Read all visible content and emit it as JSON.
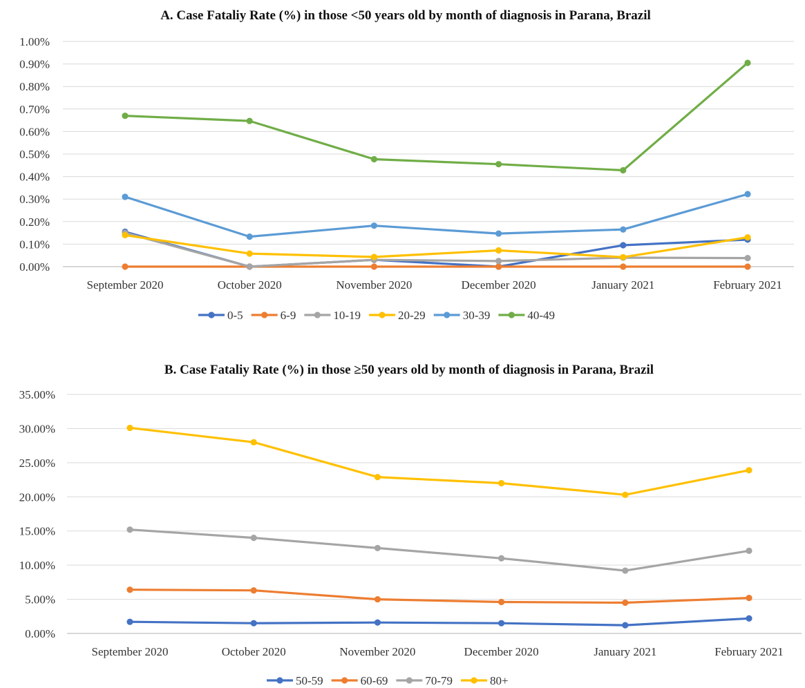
{
  "chart_data": [
    {
      "type": "line",
      "title": "A. Case Fataliy Rate (%) in those <50 years old by month of diagnosis in Parana, Brazil",
      "categories": [
        "September 2020",
        "October 2020",
        "November 2020",
        "December 2020",
        "January 2021",
        "February 2021"
      ],
      "ylim": [
        0,
        1.0
      ],
      "yticks": [
        "0.00%",
        "0.10%",
        "0.20%",
        "0.30%",
        "0.40%",
        "0.50%",
        "0.60%",
        "0.70%",
        "0.80%",
        "0.90%",
        "1.00%"
      ],
      "grid": true,
      "legend_position": "bottom",
      "series": [
        {
          "name": "0-5",
          "color": "#4472C4",
          "values": [
            0.155,
            0.0,
            0.03,
            0.0,
            0.095,
            0.12
          ]
        },
        {
          "name": "6-9",
          "color": "#ED7D31",
          "values": [
            0.0,
            0.0,
            0.0,
            0.0,
            0.0,
            0.0
          ]
        },
        {
          "name": "10-19",
          "color": "#A5A5A5",
          "values": [
            0.15,
            0.0,
            0.03,
            0.025,
            0.04,
            0.038
          ]
        },
        {
          "name": "20-29",
          "color": "#FFC000",
          "values": [
            0.14,
            0.058,
            0.043,
            0.072,
            0.042,
            0.13
          ]
        },
        {
          "name": "30-39",
          "color": "#5B9BD5",
          "values": [
            0.31,
            0.133,
            0.182,
            0.147,
            0.165,
            0.322
          ]
        },
        {
          "name": "40-49",
          "color": "#70AD47",
          "values": [
            0.67,
            0.647,
            0.477,
            0.455,
            0.428,
            0.905
          ]
        }
      ]
    },
    {
      "type": "line",
      "title": "B. Case Fataliy Rate (%) in those ≥50 years old by month of diagnosis in Parana, Brazil",
      "categories": [
        "September 2020",
        "October 2020",
        "November 2020",
        "December 2020",
        "January 2021",
        "February 2021"
      ],
      "ylim": [
        0,
        35
      ],
      "yticks": [
        "0.00%",
        "5.00%",
        "10.00%",
        "15.00%",
        "20.00%",
        "25.00%",
        "30.00%",
        "35.00%"
      ],
      "grid": true,
      "legend_position": "bottom",
      "series": [
        {
          "name": "50-59",
          "color": "#4472C4",
          "values": [
            1.7,
            1.5,
            1.6,
            1.5,
            1.2,
            2.2
          ]
        },
        {
          "name": "60-69",
          "color": "#ED7D31",
          "values": [
            6.4,
            6.3,
            5.0,
            4.6,
            4.5,
            5.2
          ]
        },
        {
          "name": "70-79",
          "color": "#A5A5A5",
          "values": [
            15.2,
            14.0,
            12.5,
            11.0,
            9.2,
            12.1
          ]
        },
        {
          "name": "80+",
          "color": "#FFC000",
          "values": [
            30.1,
            28.0,
            22.9,
            22.0,
            20.3,
            23.9
          ]
        }
      ]
    }
  ]
}
